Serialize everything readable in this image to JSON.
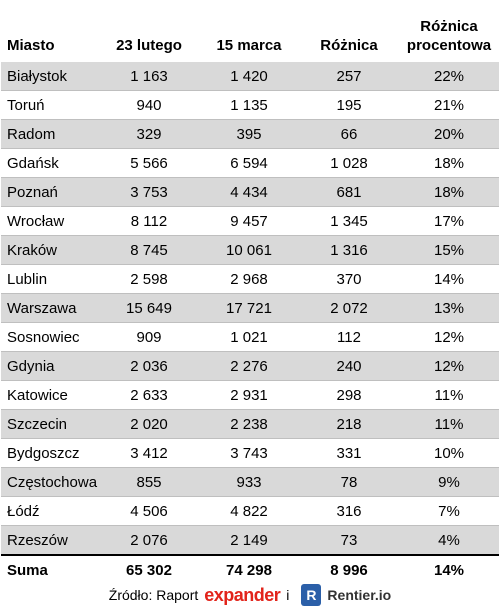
{
  "table": {
    "header": [
      "Miasto",
      "23 lutego",
      "15 marca",
      "Różnica",
      "Różnica procentowa"
    ],
    "rows": [
      [
        "Białystok",
        "1 163",
        "1 420",
        "257",
        "22%"
      ],
      [
        "Toruń",
        "940",
        "1 135",
        "195",
        "21%"
      ],
      [
        "Radom",
        "329",
        "395",
        "66",
        "20%"
      ],
      [
        "Gdańsk",
        "5 566",
        "6 594",
        "1 028",
        "18%"
      ],
      [
        "Poznań",
        "3 753",
        "4 434",
        "681",
        "18%"
      ],
      [
        "Wrocław",
        "8 112",
        "9 457",
        "1 345",
        "17%"
      ],
      [
        "Kraków",
        "8 745",
        "10 061",
        "1 316",
        "15%"
      ],
      [
        "Lublin",
        "2 598",
        "2 968",
        "370",
        "14%"
      ],
      [
        "Warszawa",
        "15 649",
        "17 721",
        "2 072",
        "13%"
      ],
      [
        "Sosnowiec",
        "909",
        "1 021",
        "112",
        "12%"
      ],
      [
        "Gdynia",
        "2 036",
        "2 276",
        "240",
        "12%"
      ],
      [
        "Katowice",
        "2 633",
        "2 931",
        "298",
        "11%"
      ],
      [
        "Szczecin",
        "2 020",
        "2 238",
        "218",
        "11%"
      ],
      [
        "Bydgoszcz",
        "3 412",
        "3 743",
        "331",
        "10%"
      ],
      [
        "Częstochowa",
        "855",
        "933",
        "78",
        "9%"
      ],
      [
        "Łódź",
        "4 506",
        "4 822",
        "316",
        "7%"
      ],
      [
        "Rzeszów",
        "2 076",
        "2 149",
        "73",
        "4%"
      ]
    ],
    "total": [
      "Suma",
      "65 302",
      "74 298",
      "8 996",
      "14%"
    ]
  },
  "footer": {
    "source_label": "Źródło: Raport",
    "brand1": "expander",
    "conjunction": "i",
    "logo_letter": "R",
    "brand2": "Rentier.io"
  }
}
